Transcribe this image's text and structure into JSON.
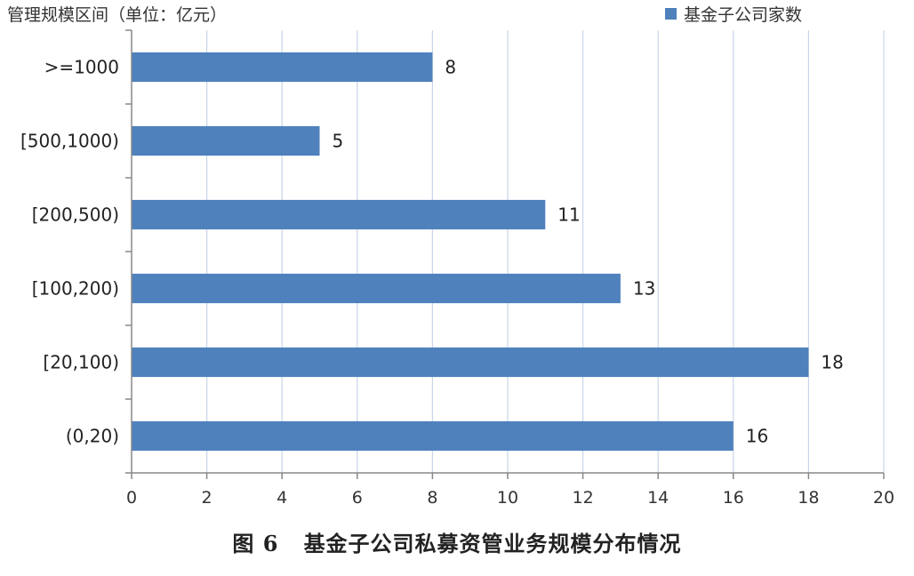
{
  "y_axis_title": "管理规模区间（单位：亿元）",
  "legend_label": "基金子公司家数",
  "caption": {
    "figure_no": "图 6",
    "text": "基金子公司私募资管业务规模分布情况"
  },
  "colors": {
    "bar": "#4f81bd",
    "grid": "#c9d6ea",
    "axis": "#888888"
  },
  "chart_data": {
    "type": "bar",
    "orientation": "horizontal",
    "categories": [
      ">=1000",
      "[500,1000)",
      "[200,500)",
      "[100,200)",
      "[20,100)",
      "(0,20)"
    ],
    "series": [
      {
        "name": "基金子公司家数",
        "values": [
          8,
          5,
          11,
          13,
          18,
          16
        ]
      }
    ],
    "xlim": [
      0,
      20
    ],
    "xticks": [
      0,
      2,
      4,
      6,
      8,
      10,
      12,
      14,
      16,
      18,
      20
    ],
    "title": "",
    "xlabel": "",
    "ylabel": "管理规模区间（单位：亿元）",
    "grid": "vertical",
    "legend": "top-right"
  }
}
